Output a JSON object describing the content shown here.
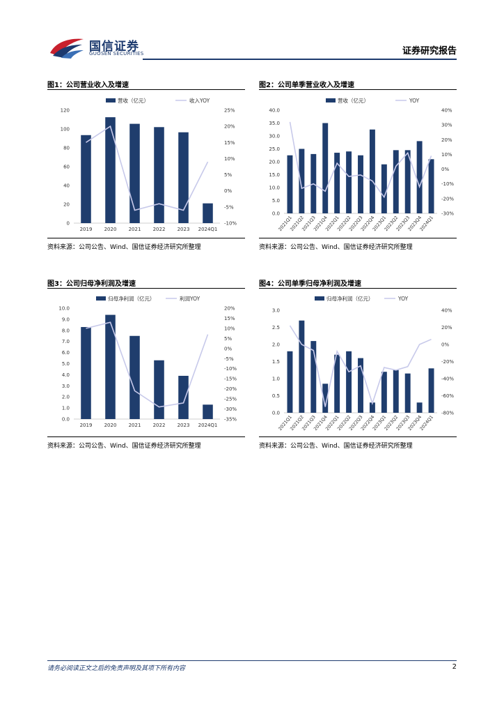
{
  "header": {
    "company_cn": "国信证券",
    "company_en": "GUOSEN SECURITIES",
    "report_type": "证券研究报告"
  },
  "colors": {
    "bar": "#1f3d6d",
    "line": "#c7c9ea",
    "brand_red": "#c8202d",
    "brand_blue": "#1d3a6e"
  },
  "figures": [
    {
      "title": "图1：公司营业收入及增速",
      "source": "资料来源：公司公告、Wind、国信证券经济研究所整理"
    },
    {
      "title": "图2：公司单季营业收入及增速",
      "source": "资料来源：公司公告、Wind、国信证券经济研究所整理"
    },
    {
      "title": "图3：公司归母净利润及增速",
      "source": "资料来源：公司公告、Wind、国信证券经济研究所整理"
    },
    {
      "title": "图4：公司单季归母净利润及增速",
      "source": "资料来源：公司公告、Wind、国信证券经济研究所整理"
    }
  ],
  "chart_data": [
    {
      "type": "bar",
      "categories": [
        "2019",
        "2020",
        "2021",
        "2022",
        "2023",
        "2024Q1"
      ],
      "series": [
        {
          "name": "营收（亿元）",
          "type": "bar",
          "axis": "left",
          "values": [
            93.5,
            112.5,
            105.5,
            102,
            96.5,
            21
          ]
        },
        {
          "name": "收入YOY",
          "type": "line",
          "axis": "right",
          "values": [
            15,
            20,
            -6,
            -4,
            -6,
            9
          ]
        }
      ],
      "left_axis": {
        "min": 0,
        "max": 120,
        "step": 20,
        "ticks": [
          "0",
          "20",
          "40",
          "60",
          "80",
          "100",
          "120"
        ]
      },
      "right_axis": {
        "min": -10,
        "max": 25,
        "step": 5,
        "ticks": [
          "-10%",
          "-5%",
          "0%",
          "5%",
          "10%",
          "15%",
          "20%",
          "25%"
        ]
      }
    },
    {
      "type": "bar",
      "categories": [
        "2021Q1",
        "2021Q2",
        "2021Q3",
        "2021Q4",
        "2022Q1",
        "2022Q2",
        "2022Q3",
        "2022Q4",
        "2023Q1",
        "2023Q2",
        "2023Q3",
        "2023Q4",
        "2024Q1"
      ],
      "series": [
        {
          "name": "营收（亿元）",
          "type": "bar",
          "axis": "left",
          "values": [
            22.5,
            25,
            23,
            35,
            23.5,
            24,
            22.5,
            32.5,
            19,
            24.5,
            24.5,
            28,
            21
          ]
        },
        {
          "name": "YOY",
          "type": "line",
          "axis": "right",
          "values": [
            32,
            -13,
            -10,
            -15,
            4,
            -5,
            -4,
            -8,
            -19,
            2,
            11,
            -12,
            9
          ]
        }
      ],
      "left_axis": {
        "min": 0,
        "max": 40,
        "step": 5,
        "ticks": [
          "0.0",
          "5.0",
          "10.0",
          "15.0",
          "20.0",
          "25.0",
          "30.0",
          "35.0",
          "40.0"
        ]
      },
      "right_axis": {
        "min": -30,
        "max": 40,
        "step": 10,
        "ticks": [
          "-30%",
          "-20%",
          "-10%",
          "0%",
          "10%",
          "20%",
          "30%",
          "40%"
        ]
      }
    },
    {
      "type": "bar",
      "categories": [
        "2019",
        "2020",
        "2021",
        "2022",
        "2023",
        "2024Q1"
      ],
      "series": [
        {
          "name": "归母净利润（亿元）",
          "type": "bar",
          "axis": "left",
          "values": [
            8.3,
            9.4,
            7.5,
            5.3,
            3.9,
            1.3
          ]
        },
        {
          "name": "利润YOY",
          "type": "line",
          "axis": "right",
          "values": [
            10,
            13,
            -21,
            -29,
            -27,
            7
          ]
        }
      ],
      "left_axis": {
        "min": 0,
        "max": 10,
        "step": 1,
        "ticks": [
          "0.0",
          "1.0",
          "2.0",
          "3.0",
          "4.0",
          "5.0",
          "6.0",
          "7.0",
          "8.0",
          "9.0",
          "10.0"
        ]
      },
      "right_axis": {
        "min": -35,
        "max": 20,
        "step": 5,
        "ticks": [
          "-35%",
          "-30%",
          "-25%",
          "-20%",
          "-15%",
          "-10%",
          "-5%",
          "0%",
          "5%",
          "10%",
          "15%",
          "20%"
        ]
      }
    },
    {
      "type": "bar",
      "categories": [
        "2021Q1",
        "2021Q2",
        "2021Q3",
        "2021Q4",
        "2022Q1",
        "2022Q2",
        "2022Q3",
        "2022Q4",
        "2023Q1",
        "2023Q2",
        "2023Q3",
        "2023Q4",
        "2024Q1"
      ],
      "series": [
        {
          "name": "归母净利润（亿元）",
          "type": "bar",
          "axis": "left",
          "values": [
            1.8,
            2.7,
            2.1,
            0.85,
            1.7,
            1.8,
            1.6,
            0.3,
            1.2,
            1.25,
            1.15,
            0.3,
            1.3
          ]
        },
        {
          "name": "YOY",
          "type": "line",
          "axis": "right",
          "values": [
            22,
            0,
            -7,
            -73,
            -8,
            -32,
            -25,
            -69,
            -27,
            -30,
            -26,
            0,
            6
          ]
        }
      ],
      "left_axis": {
        "min": 0,
        "max": 3,
        "step": 0.5,
        "ticks": [
          "0.0",
          "0.5",
          "1.0",
          "1.5",
          "2.0",
          "2.5",
          "3.0"
        ]
      },
      "right_axis": {
        "min": -80,
        "max": 40,
        "step": 20,
        "ticks": [
          "-80%",
          "-60%",
          "-40%",
          "-20%",
          "0%",
          "20%",
          "40%"
        ]
      }
    }
  ],
  "footer": {
    "disclaimer": "请务必阅读正文之后的免责声明及其项下所有内容",
    "page_number": "2"
  }
}
